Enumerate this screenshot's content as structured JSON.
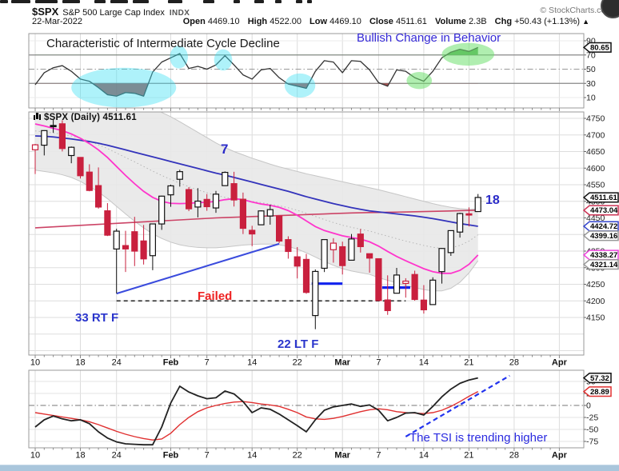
{
  "header": {
    "symbol": "$SPX",
    "name": "S&P 500 Large Cap Index",
    "exchange": "INDX",
    "copyright": "© StockCharts.com",
    "date": "22-Mar-2022",
    "quote": {
      "open_label": "Open",
      "open": "4469.10",
      "high_label": "High",
      "high": "4522.00",
      "low_label": "Low",
      "low": "4469.10",
      "close_label": "Close",
      "close": "4511.61",
      "volume_label": "Volume",
      "volume": "2.3B",
      "chg_label": "Chg",
      "chg": "+50.43 (+1.13%)",
      "chg_arrow": "▲"
    }
  },
  "annotations": {
    "cycle_decline": "Characteristic of Intermediate Cycle Decline",
    "bullish_change": "Bullish Change in Behavior",
    "count_7": "7",
    "count_18": "18",
    "count_33": "33 RT F",
    "count_22": "22 LT F",
    "failed": "Failed",
    "tsi_note": "The TSI is trending higher",
    "shapes": {
      "trendline": {
        "from": [
          9,
          4222
        ],
        "to": [
          27,
          4372
        ]
      },
      "dashed_level": {
        "price": 4200,
        "from_i": 9,
        "to_i": 41
      },
      "blue_seg1": {
        "price": 4252,
        "from_i": 30.6,
        "to_i": 34
      },
      "blue_seg2": {
        "price": 4240,
        "from_i": 38.4,
        "to_i": 41.5
      },
      "tsi_trend": {
        "from": [
          41,
          -65
        ],
        "to": [
          52.5,
          62
        ]
      },
      "ellipses": [
        {
          "i": 9.8,
          "v": 24,
          "rd": 5.8,
          "ru": 28,
          "c": "cyan"
        },
        {
          "i": 15.9,
          "v": 67,
          "rd": 1.0,
          "ru": 16,
          "c": "cyan"
        },
        {
          "i": 20.8,
          "v": 63,
          "rd": 1.0,
          "ru": 15,
          "c": "cyan"
        },
        {
          "i": 29.3,
          "v": 27,
          "rd": 1.7,
          "ru": 17,
          "c": "cyan"
        },
        {
          "i": 42.5,
          "v": 34,
          "rd": 1.4,
          "ru": 12,
          "c": "green"
        },
        {
          "i": 47.9,
          "v": 71,
          "rd": 2.9,
          "ru": 16,
          "c": "green"
        }
      ]
    }
  },
  "colors": {
    "candle_red": "#c9203e",
    "candle_black": "#111111",
    "ma_blue": "#3333bb",
    "ma_red": "#cc4466",
    "ma_pink": "#ff35cc",
    "band_fill": "#e8e8e8",
    "band_edge": "#c6c6c6",
    "osc_line": "#333333",
    "oversold_fill": "#993333",
    "overbought_fill": "#3c9b3c",
    "tsi_line": "#222222",
    "tsi_signal": "#e03030",
    "anno_blue": "#2233dd",
    "anno_red": "#ee2222",
    "highlight_cyan": "#3fe0f2",
    "highlight_green": "#6fe06f",
    "scrollbar": "#a9c6dc"
  },
  "x_axis": {
    "labels": [
      {
        "text": "10",
        "i": 0
      },
      {
        "text": "18",
        "i": 5
      },
      {
        "text": "24",
        "i": 9
      },
      {
        "text": "Feb",
        "i": 15,
        "bold": true
      },
      {
        "text": "7",
        "i": 19
      },
      {
        "text": "14",
        "i": 24
      },
      {
        "text": "22",
        "i": 29
      },
      {
        "text": "Mar",
        "i": 34,
        "bold": true
      },
      {
        "text": "7",
        "i": 38
      },
      {
        "text": "14",
        "i": 43
      },
      {
        "text": "21",
        "i": 48
      },
      {
        "text": "28",
        "i": 53
      },
      {
        "text": "Apr",
        "i": 58,
        "bold": true
      }
    ]
  },
  "chart_data": [
    {
      "type": "line",
      "panel": "momentum",
      "ylim": [
        0,
        100
      ],
      "thresholds": {
        "overbought": 70,
        "mid": 50,
        "oversold": 30
      },
      "axis_labels": [
        90,
        70,
        50,
        30,
        10
      ],
      "last_value": 80.65,
      "last_label": "80.65",
      "values": [
        28,
        45,
        52,
        55,
        47,
        36,
        33,
        24,
        14,
        12,
        17,
        16,
        12,
        46,
        60,
        66,
        72,
        51,
        54,
        50,
        56,
        69,
        56,
        42,
        36,
        49,
        51,
        38,
        29,
        26,
        23,
        47,
        62,
        60,
        45,
        62,
        61,
        49,
        31,
        26,
        49,
        47,
        38,
        33,
        47,
        66,
        74,
        78,
        75,
        80.65
      ]
    },
    {
      "type": "candlestick",
      "panel": "price",
      "title": "$SPX (Daily) 4511.61",
      "ylim": [
        4050,
        4770
      ],
      "grid_step": 50,
      "axis_labels": [
        4750,
        4700,
        4650,
        4600,
        4550,
        4500,
        4450,
        4400,
        4350,
        4300,
        4250,
        4200,
        4150
      ],
      "prev_close": 4677.03,
      "candles": [
        [
          "Jan 10",
          4655.34,
          4673.02,
          4582.24,
          4670.29
        ],
        [
          "Jan 11",
          4669.14,
          4714.13,
          4638.27,
          4713.07
        ],
        [
          "Jan 12",
          4728.59,
          4748.83,
          4706.71,
          4726.35
        ],
        [
          "Jan 13",
          4733.56,
          4744.13,
          4650.29,
          4659.03
        ],
        [
          "Jan 14",
          4637.99,
          4665.13,
          4614.75,
          4662.85
        ],
        [
          "Jan 18",
          4632.24,
          4632.24,
          4568.7,
          4577.11
        ],
        [
          "Jan 19",
          4588.03,
          4611.55,
          4530.2,
          4532.76
        ],
        [
          "Jan 20",
          4547.35,
          4602.11,
          4477.95,
          4482.73
        ],
        [
          "Jan 21",
          4471.38,
          4494.52,
          4395.34,
          4397.94
        ],
        [
          "Jan 24",
          4356.32,
          4417.35,
          4222.62,
          4410.13
        ],
        [
          "Jan 25",
          4366.64,
          4411.01,
          4287.11,
          4356.45
        ],
        [
          "Jan 26",
          4408.43,
          4453.23,
          4304.8,
          4349.93
        ],
        [
          "Jan 27",
          4380.58,
          4428.74,
          4309.5,
          4326.51
        ],
        [
          "Jan 28",
          4336.19,
          4432.72,
          4292.46,
          4431.85
        ],
        [
          "Jan 31",
          4431.79,
          4516.89,
          4414.02,
          4515.55
        ],
        [
          "Feb 1",
          4519.57,
          4550.25,
          4483.53,
          4546.54
        ],
        [
          "Feb 2",
          4566.39,
          4595.31,
          4544.32,
          4589.38
        ],
        [
          "Feb 3",
          4535.41,
          4542.88,
          4470.39,
          4477.44
        ],
        [
          "Feb 4",
          4482.79,
          4539.66,
          4451.5,
          4500.53
        ],
        [
          "Feb 7",
          4505.75,
          4521.86,
          4471.47,
          4483.87
        ],
        [
          "Feb 8",
          4480.02,
          4531.32,
          4465.4,
          4521.54
        ],
        [
          "Feb 9",
          4547.27,
          4590.03,
          4547.27,
          4587.18
        ],
        [
          "Feb 10",
          4553.24,
          4588.92,
          4484.31,
          4504.08
        ],
        [
          "Feb 11",
          4506.27,
          4526.33,
          4401.41,
          4418.64
        ],
        [
          "Feb 14",
          4412.61,
          4426.22,
          4364.84,
          4401.67
        ],
        [
          "Feb 15",
          4429.28,
          4472.77,
          4429.28,
          4471.07
        ],
        [
          "Feb 16",
          4455.75,
          4489.55,
          4429.68,
          4475.01
        ],
        [
          "Feb 17",
          4456.06,
          4456.06,
          4373.81,
          4380.26
        ],
        [
          "Feb 18",
          4384.57,
          4394.6,
          4327.22,
          4348.87
        ],
        [
          "Feb 22",
          4332.74,
          4362.12,
          4267.62,
          4304.76
        ],
        [
          "Feb 23",
          4324.93,
          4341.51,
          4221.51,
          4225.5
        ],
        [
          "Feb 24",
          4155.77,
          4294.73,
          4114.65,
          4288.7
        ],
        [
          "Feb 25",
          4298.31,
          4385.34,
          4286.83,
          4384.65
        ],
        [
          "Feb 28",
          4354.17,
          4388.84,
          4315.12,
          4373.94
        ],
        [
          "Mar 1",
          4363.14,
          4378.45,
          4279.54,
          4306.26
        ],
        [
          "Mar 2",
          4322.56,
          4401.48,
          4322.56,
          4386.54
        ],
        [
          "Mar 3",
          4401.32,
          4416.78,
          4345.56,
          4363.49
        ],
        [
          "Mar 4",
          4342.12,
          4342.12,
          4284.98,
          4328.87
        ],
        [
          "Mar 7",
          4327.01,
          4327.01,
          4199.85,
          4201.09
        ],
        [
          "Mar 8",
          4202.75,
          4276.94,
          4157.87,
          4170.7
        ],
        [
          "Mar 9",
          4223.1,
          4299.4,
          4223.1,
          4277.88
        ],
        [
          "Mar 10",
          4252.55,
          4268.28,
          4209.8,
          4259.52
        ],
        [
          "Mar 11",
          4279.5,
          4291.01,
          4200.49,
          4204.31
        ],
        [
          "Mar 14",
          4202.32,
          4247.57,
          4161.72,
          4173.11
        ],
        [
          "Mar 15",
          4188.82,
          4271.05,
          4187.9,
          4262.45
        ],
        [
          "Mar 16",
          4288.14,
          4358.8,
          4251.99,
          4357.86
        ],
        [
          "Mar 17",
          4345.55,
          4412.67,
          4335.65,
          4411.67
        ],
        [
          "Mar 18",
          4407.34,
          4465.4,
          4390.63,
          4463.12
        ],
        [
          "Mar 21",
          4462.4,
          4481.75,
          4424.3,
          4461.18
        ],
        [
          "Mar 22",
          4469.1,
          4522.0,
          4469.1,
          4511.61
        ]
      ],
      "overlays": {
        "ma_blue": [
          4697,
          4696,
          4694,
          4691,
          4688,
          4684,
          4680,
          4675,
          4669,
          4662,
          4655,
          4648,
          4641,
          4634,
          4627,
          4620,
          4613,
          4606,
          4599,
          4592,
          4585,
          4579,
          4572,
          4565,
          4558,
          4551,
          4544,
          4537,
          4530,
          4522,
          4514,
          4507,
          4500,
          4493,
          4487,
          4481,
          4476,
          4471,
          4468,
          4465,
          4462,
          4459,
          4456,
          4452,
          4448,
          4443,
          4438,
          4433,
          4429,
          4424.72
        ],
        "ma_red": [
          4420,
          4421.5,
          4423,
          4424.5,
          4426,
          4427.5,
          4429,
          4430.5,
          4432,
          4433.5,
          4435,
          4436.5,
          4438,
          4439.5,
          4441,
          4442.5,
          4444,
          4445.5,
          4447,
          4448.5,
          4450,
          4451,
          4452,
          4453,
          4454,
          4455,
          4456,
          4457,
          4458,
          4459,
          4460,
          4461,
          4462,
          4463,
          4464,
          4464.8,
          4465.4,
          4466,
          4466.5,
          4467,
          4467.5,
          4468,
          4468.6,
          4469.2,
          4469.8,
          4470.4,
          4471,
          4471.8,
          4472.4,
          4473.04
        ],
        "ma_pink": [
          4733,
          4727,
          4720,
          4713,
          4703,
          4690,
          4674,
          4655,
          4632,
          4605,
          4578,
          4553,
          4530,
          4512,
          4500,
          4494,
          4493,
          4494,
          4496,
          4497,
          4500,
          4505,
          4508,
          4505,
          4498,
          4492,
          4488,
          4482,
          4472,
          4458,
          4441,
          4424,
          4412,
          4404,
          4396,
          4391,
          4386,
          4378,
          4365,
          4349,
          4334,
          4321,
          4309,
          4297,
          4288,
          4283,
          4283,
          4292,
          4310,
          4338.27
        ],
        "band_upper": [
          4830,
          4828,
          4826,
          4824,
          4822,
          4820,
          4817,
          4813,
          4810,
          4806,
          4802,
          4798,
          4790,
          4780,
          4768,
          4755,
          4740,
          4724,
          4708,
          4692,
          4676,
          4662,
          4650,
          4640,
          4630,
          4621,
          4612,
          4604,
          4597,
          4590,
          4583,
          4577,
          4571,
          4565,
          4559,
          4553,
          4547,
          4541,
          4535,
          4528,
          4521,
          4514,
          4507,
          4500,
          4493,
          4487,
          4482,
          4478,
          4476,
          4477.18
        ],
        "band_lower": [
          4594,
          4590,
          4586,
          4580,
          4572,
          4560,
          4545,
          4528,
          4508,
          4485,
          4462,
          4440,
          4420,
          4402,
          4388,
          4377,
          4369,
          4364,
          4361,
          4360,
          4360,
          4362,
          4365,
          4368,
          4370,
          4371,
          4371,
          4369,
          4364,
          4356,
          4345,
          4332,
          4319,
          4307,
          4297,
          4290,
          4285,
          4280,
          4270,
          4262,
          4254,
          4246,
          4240,
          4234,
          4230,
          4230,
          4238,
          4256,
          4284,
          4321.14
        ]
      },
      "price_labels": [
        {
          "text": "4511.61",
          "value": 4511.61,
          "color": "#111111",
          "bold": true
        },
        {
          "text": "4473.04",
          "value": 4473.04,
          "color": "#cc3355"
        },
        {
          "text": "4424.72",
          "value": 4424.72,
          "color": "#3344cc"
        },
        {
          "text": "4399.16",
          "value": 4399.16,
          "color": "#999999"
        },
        {
          "text": "4338.27",
          "value": 4338.27,
          "color": "#ee44dd"
        },
        {
          "text": "4321.14",
          "value": 4321.14,
          "color": "#999999"
        }
      ]
    },
    {
      "type": "line",
      "panel": "tsi",
      "ylim": [
        -100,
        75
      ],
      "axis_labels": [
        50,
        25,
        0,
        -25,
        -50,
        -75
      ],
      "series": [
        {
          "name": "tsi",
          "last_value": 57.32,
          "last_label": "57.32",
          "values": [
            -45,
            -30,
            -22,
            -28,
            -32,
            -30,
            -38,
            -55,
            -68,
            -76,
            -80,
            -81,
            -82,
            -82,
            -45,
            5,
            40,
            28,
            20,
            14,
            16,
            30,
            24,
            8,
            -15,
            -5,
            -8,
            -18,
            -30,
            -42,
            -55,
            -30,
            -10,
            -3,
            0,
            3,
            -2,
            1,
            -10,
            -32,
            -25,
            -16,
            -15,
            -20,
            -2,
            18,
            34,
            46,
            53,
            57.32
          ]
        },
        {
          "name": "signal",
          "last_value": 28.89,
          "last_label": "28.89",
          "values": [
            -15,
            -18,
            -21,
            -24,
            -27,
            -30,
            -34,
            -40,
            -47,
            -54,
            -60,
            -65,
            -69,
            -72,
            -70,
            -58,
            -40,
            -25,
            -13,
            -5,
            0,
            4,
            7,
            8,
            6,
            3,
            1,
            -2,
            -8,
            -15,
            -24,
            -28,
            -29,
            -27,
            -23,
            -18,
            -13,
            -9,
            -7,
            -9,
            -13,
            -15,
            -16,
            -17,
            -15,
            -10,
            -2,
            8,
            19,
            28.89
          ]
        }
      ]
    }
  ],
  "chrome": {
    "segments": [
      [
        0,
        10
      ],
      [
        14,
        24
      ],
      [
        44,
        28
      ],
      [
        78,
        22
      ],
      [
        118,
        14
      ],
      [
        138,
        22
      ],
      [
        166,
        20
      ],
      [
        210,
        18
      ],
      [
        254,
        14
      ],
      [
        292,
        8
      ],
      [
        318,
        12
      ],
      [
        344,
        8
      ],
      [
        370,
        8
      ],
      [
        384,
        6
      ]
    ]
  }
}
